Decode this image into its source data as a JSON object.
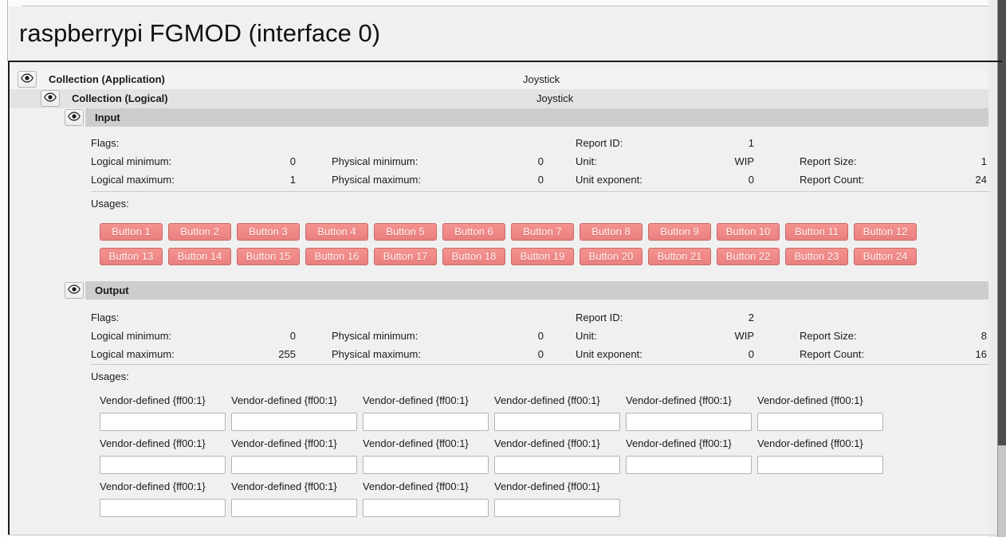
{
  "window": {
    "title": "raspberrypi FGMOD (interface 0)"
  },
  "colors": {
    "usage_button_top": "#f4938f",
    "usage_button_bottom": "#ea8080",
    "usage_button_border": "#c96a66",
    "section_header_band": "#cdcdcd",
    "logical_row_bg": "#e3e3e3",
    "scrollbar_thumb": "#4c4c4c"
  },
  "tree": {
    "application": {
      "label": "Collection (Application)",
      "usage": "Joystick"
    },
    "logical": {
      "label": "Collection (Logical)",
      "usage": "Joystick"
    }
  },
  "input": {
    "title": "Input",
    "field_rows": [
      [
        {
          "label": "Flags:",
          "value": ""
        },
        null,
        {
          "label": "Report ID:",
          "value": "1"
        },
        null
      ],
      [
        {
          "label": "Logical minimum:",
          "value": "0"
        },
        {
          "label": "Physical minimum:",
          "value": "0"
        },
        {
          "label": "Unit:",
          "value": "WIP"
        },
        {
          "label": "Report Size:",
          "value": "1"
        }
      ],
      [
        {
          "label": "Logical maximum:",
          "value": "1"
        },
        {
          "label": "Physical maximum:",
          "value": "0"
        },
        {
          "label": "Unit exponent:",
          "value": "0"
        },
        {
          "label": "Report Count:",
          "value": "24"
        }
      ]
    ],
    "usages_label": "Usages:",
    "buttons": [
      "Button 1",
      "Button 2",
      "Button 3",
      "Button 4",
      "Button 5",
      "Button 6",
      "Button 7",
      "Button 8",
      "Button 9",
      "Button 10",
      "Button 11",
      "Button 12",
      "Button 13",
      "Button 14",
      "Button 15",
      "Button 16",
      "Button 17",
      "Button 18",
      "Button 19",
      "Button 20",
      "Button 21",
      "Button 22",
      "Button 23",
      "Button 24"
    ]
  },
  "output": {
    "title": "Output",
    "field_rows": [
      [
        {
          "label": "Flags:",
          "value": ""
        },
        null,
        {
          "label": "Report ID:",
          "value": "2"
        },
        null
      ],
      [
        {
          "label": "Logical minimum:",
          "value": "0"
        },
        {
          "label": "Physical minimum:",
          "value": "0"
        },
        {
          "label": "Unit:",
          "value": "WIP"
        },
        {
          "label": "Report Size:",
          "value": "8"
        }
      ],
      [
        {
          "label": "Logical maximum:",
          "value": "255"
        },
        {
          "label": "Physical maximum:",
          "value": "0"
        },
        {
          "label": "Unit exponent:",
          "value": "0"
        },
        {
          "label": "Report Count:",
          "value": "16"
        }
      ]
    ],
    "usages_label": "Usages:",
    "vendor_usages": [
      {
        "label": "Vendor-defined {ff00:1}",
        "value": ""
      },
      {
        "label": "Vendor-defined {ff00:1}",
        "value": ""
      },
      {
        "label": "Vendor-defined {ff00:1}",
        "value": ""
      },
      {
        "label": "Vendor-defined {ff00:1}",
        "value": ""
      },
      {
        "label": "Vendor-defined {ff00:1}",
        "value": ""
      },
      {
        "label": "Vendor-defined {ff00:1}",
        "value": ""
      },
      {
        "label": "Vendor-defined {ff00:1}",
        "value": ""
      },
      {
        "label": "Vendor-defined {ff00:1}",
        "value": ""
      },
      {
        "label": "Vendor-defined {ff00:1}",
        "value": ""
      },
      {
        "label": "Vendor-defined {ff00:1}",
        "value": ""
      },
      {
        "label": "Vendor-defined {ff00:1}",
        "value": ""
      },
      {
        "label": "Vendor-defined {ff00:1}",
        "value": ""
      },
      {
        "label": "Vendor-defined {ff00:1}",
        "value": ""
      },
      {
        "label": "Vendor-defined {ff00:1}",
        "value": ""
      },
      {
        "label": "Vendor-defined {ff00:1}",
        "value": ""
      },
      {
        "label": "Vendor-defined {ff00:1}",
        "value": ""
      }
    ]
  }
}
